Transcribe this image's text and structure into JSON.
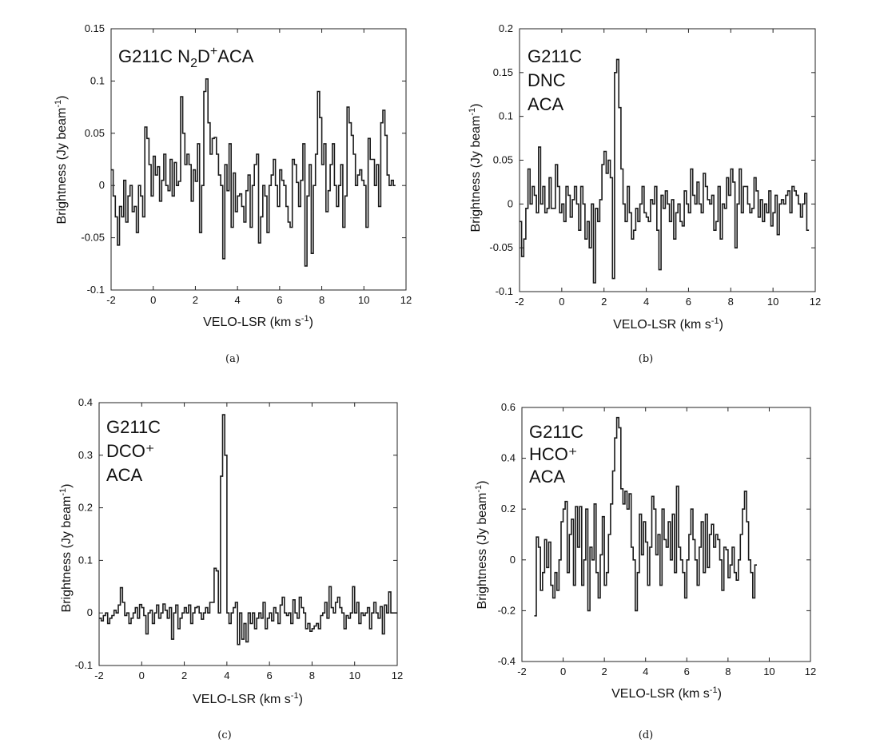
{
  "chart_data": [
    {
      "type": "line",
      "panel": "a",
      "caption": "(a)",
      "title": "G211C N₂D⁺ACA",
      "annotation_lines": [
        "G211C N₂D⁺ACA"
      ],
      "xlabel": "VELO-LSR (km s⁻¹)",
      "ylabel": "Brightness (Jy beam⁻¹)",
      "xlim": [
        -2,
        12
      ],
      "ylim": [
        -0.1,
        0.15
      ],
      "xticks": [
        -2,
        0,
        2,
        4,
        6,
        8,
        10,
        12
      ],
      "yticks": [
        -0.1,
        -0.05,
        0,
        0.05,
        0.1,
        0.15
      ],
      "xtick_labels": [
        "-2",
        "0",
        "2",
        "4",
        "6",
        "8",
        "10",
        "12"
      ],
      "ytick_labels": [
        "-0.1",
        "-0.05",
        "0",
        "0.05",
        "0.1",
        "0.15"
      ],
      "x_start": -2.0,
      "x_step": 0.1,
      "values": [
        0.015,
        -0.01,
        -0.03,
        -0.057,
        -0.02,
        -0.03,
        0.005,
        -0.035,
        -0.01,
        0.0,
        -0.025,
        -0.02,
        -0.045,
        0.0,
        -0.01,
        -0.03,
        0.056,
        0.045,
        0.02,
        -0.01,
        0.028,
        0.01,
        0.018,
        -0.015,
        0.005,
        0.03,
        0.0,
        -0.005,
        0.025,
        -0.01,
        0.022,
        0.0,
        0.004,
        0.085,
        0.05,
        0.02,
        0.03,
        0.02,
        -0.015,
        0.015,
        0.004,
        0.04,
        -0.045,
        0.0,
        0.09,
        0.102,
        0.06,
        0.03,
        0.045,
        0.046,
        0.03,
        0.01,
        0.0,
        -0.07,
        0.02,
        -0.005,
        0.04,
        -0.04,
        0.012,
        -0.025,
        -0.01,
        -0.008,
        -0.02,
        -0.035,
        -0.005,
        0.01,
        -0.04,
        0.0,
        0.02,
        0.03,
        -0.055,
        -0.03,
        0.0,
        -0.01,
        -0.045,
        0.0,
        0.01,
        0.025,
        0.0,
        -0.02,
        0.015,
        0.005,
        0.0,
        -0.02,
        -0.035,
        -0.04,
        0.025,
        0.02,
        0.003,
        -0.02,
        0.005,
        0.04,
        -0.077,
        -0.01,
        0.02,
        -0.065,
        0.0,
        0.03,
        0.09,
        0.065,
        0.02,
        0.04,
        -0.025,
        -0.005,
        0.02,
        0.04,
        0.0,
        -0.02,
        0.0,
        0.02,
        -0.04,
        -0.01,
        0.075,
        0.06,
        0.048,
        0.03,
        0.0,
        0.01,
        0.015,
        0.005,
        0.0,
        -0.04,
        0.045,
        0.025,
        0.025,
        0.0,
        0.02,
        -0.02,
        0.06,
        0.072,
        0.048,
        0.01,
        0.0,
        0.005,
        0.0
      ]
    },
    {
      "type": "line",
      "panel": "b",
      "caption": "(b)",
      "title": "G211C DNC ACA",
      "annotation_lines": [
        "G211C",
        "DNC",
        "ACA"
      ],
      "xlabel": "VELO-LSR (km s⁻¹)",
      "ylabel": "Brightness (Jy beam⁻¹)",
      "xlim": [
        -2,
        12
      ],
      "ylim": [
        -0.1,
        0.2
      ],
      "xticks": [
        -2,
        0,
        2,
        4,
        6,
        8,
        10,
        12
      ],
      "yticks": [
        -0.1,
        -0.05,
        0,
        0.05,
        0.1,
        0.15,
        0.2
      ],
      "xtick_labels": [
        "-2",
        "0",
        "2",
        "4",
        "6",
        "8",
        "10",
        "12"
      ],
      "ytick_labels": [
        "-0.1",
        "-0.05",
        "0",
        "0.05",
        "0.1",
        "0.15",
        "0.2"
      ],
      "x_start": -2.0,
      "x_step": 0.1,
      "values": [
        -0.02,
        -0.06,
        -0.04,
        -0.005,
        0.04,
        0.0,
        0.02,
        0.01,
        -0.01,
        0.065,
        0.0,
        0.02,
        -0.01,
        -0.005,
        0.03,
        -0.005,
        -0.005,
        0.045,
        0.02,
        -0.01,
        0.0,
        -0.02,
        0.02,
        0.01,
        -0.015,
        0.005,
        0.02,
        0.0,
        -0.03,
        0.02,
        0.0,
        -0.04,
        -0.02,
        -0.05,
        0.0,
        -0.09,
        -0.005,
        -0.02,
        0.005,
        0.045,
        0.06,
        0.035,
        0.05,
        0.03,
        -0.085,
        0.15,
        0.165,
        0.11,
        0.04,
        0.0,
        -0.02,
        0.02,
        -0.01,
        -0.04,
        -0.03,
        -0.005,
        -0.02,
        0.0,
        0.02,
        -0.01,
        -0.015,
        -0.02,
        0.005,
        0.0,
        0.02,
        -0.03,
        -0.075,
        0.01,
        -0.005,
        0.015,
        0.0,
        -0.02,
        0.005,
        -0.04,
        -0.01,
        0.0,
        -0.02,
        -0.025,
        0.015,
        0.0,
        -0.01,
        0.04,
        0.01,
        0.0,
        0.025,
        0.0,
        -0.01,
        0.035,
        0.02,
        0.005,
        0.0,
        0.01,
        -0.03,
        -0.02,
        0.02,
        -0.04,
        0.0,
        -0.005,
        0.03,
        0.01,
        0.04,
        0.025,
        -0.05,
        0.0,
        0.04,
        -0.01,
        0.02,
        0.02,
        0.0,
        -0.01,
        -0.005,
        0.03,
        0.015,
        -0.015,
        0.005,
        -0.02,
        0.0,
        -0.01,
        0.015,
        -0.025,
        -0.01,
        0.01,
        -0.035,
        0.0,
        0.005,
        0.0,
        0.01,
        0.015,
        -0.01,
        0.02,
        0.015,
        0.01,
        0.0,
        -0.015,
        0.0,
        0.012,
        -0.03
      ]
    },
    {
      "type": "line",
      "panel": "c",
      "caption": "(c)",
      "title": "G211C DCO⁺ ACA",
      "annotation_lines": [
        "G211C",
        "DCO⁺",
        "ACA"
      ],
      "xlabel": "VELO-LSR (km s⁻¹)",
      "ylabel": "Brightness (Jy beam⁻¹)",
      "xlim": [
        -2,
        12
      ],
      "ylim": [
        -0.1,
        0.4
      ],
      "xticks": [
        -2,
        0,
        2,
        4,
        6,
        8,
        10,
        12
      ],
      "yticks": [
        -0.1,
        0,
        0.1,
        0.2,
        0.3,
        0.4
      ],
      "xtick_labels": [
        "-2",
        "0",
        "2",
        "4",
        "6",
        "8",
        "10",
        "12"
      ],
      "ytick_labels": [
        "-0.1",
        "0",
        "0.1",
        "0.2",
        "0.3",
        "0.4"
      ],
      "x_start": -2.0,
      "x_step": 0.1,
      "values": [
        -0.01,
        -0.015,
        -0.005,
        0.0,
        -0.02,
        -0.01,
        -0.005,
        0.005,
        0.0,
        0.015,
        0.048,
        0.02,
        -0.005,
        0.0,
        -0.02,
        -0.01,
        0.0,
        0.01,
        -0.01,
        0.016,
        0.01,
        -0.005,
        -0.04,
        0.0,
        0.005,
        -0.02,
        0.0,
        0.015,
        -0.01,
        0.0,
        0.017,
        0.005,
        -0.01,
        0.01,
        -0.05,
        0.0,
        0.015,
        -0.03,
        -0.01,
        0.0,
        0.01,
        0.0,
        0.015,
        -0.02,
        0.0,
        0.01,
        0.012,
        0.0,
        -0.012,
        0.0,
        0.01,
        0.0,
        0.02,
        0.02,
        0.085,
        0.08,
        0.0,
        0.26,
        0.377,
        0.3,
        0.0,
        -0.02,
        0.0,
        0.01,
        0.02,
        -0.06,
        0.0,
        -0.05,
        -0.02,
        -0.055,
        0.0,
        -0.02,
        0.0,
        -0.03,
        -0.01,
        0.0,
        -0.01,
        0.02,
        -0.03,
        -0.01,
        0.0,
        -0.015,
        0.01,
        0.0,
        -0.02,
        0.015,
        0.03,
        0.0,
        -0.005,
        0.0,
        -0.02,
        0.025,
        0.0,
        -0.01,
        0.03,
        0.01,
        0.0,
        -0.03,
        -0.02,
        -0.035,
        -0.03,
        -0.025,
        -0.02,
        -0.03,
        -0.005,
        0.0,
        0.02,
        -0.01,
        0.05,
        0.01,
        0.0,
        0.02,
        0.03,
        0.01,
        0.0,
        -0.03,
        -0.005,
        -0.01,
        0.0,
        0.05,
        0.0,
        0.02,
        -0.02,
        0.0,
        -0.005,
        0.0,
        0.01,
        -0.03,
        0.0,
        0.02,
        0.0,
        -0.01,
        0.012,
        -0.04,
        0.015,
        0.0,
        0.04,
        0.0,
        0.0,
        0.0,
        0.0
      ]
    },
    {
      "type": "line",
      "panel": "d",
      "caption": "(d)",
      "title": "G211C HCO⁺ ACA",
      "annotation_lines": [
        "G211C",
        "HCO⁺",
        "ACA"
      ],
      "xlabel": "VELO-LSR (km s⁻¹)",
      "ylabel": "Brightness (Jy beam⁻¹)",
      "xlim": [
        -2,
        12
      ],
      "ylim": [
        -0.4,
        0.6
      ],
      "xticks": [
        -2,
        0,
        2,
        4,
        6,
        8,
        10,
        12
      ],
      "yticks": [
        -0.4,
        -0.2,
        0,
        0.2,
        0.4,
        0.6
      ],
      "xtick_labels": [
        "-2",
        "0",
        "2",
        "4",
        "6",
        "8",
        "10",
        "12"
      ],
      "ytick_labels": [
        "-0.4",
        "-0.2",
        "0",
        "0.2",
        "0.4",
        "0.6"
      ],
      "x_start": -1.4,
      "x_step": 0.1,
      "values": [
        -0.22,
        0.09,
        0.05,
        -0.12,
        -0.05,
        0.08,
        -0.03,
        0.07,
        -0.1,
        -0.15,
        -0.05,
        -0.12,
        0.0,
        0.15,
        0.2,
        0.23,
        -0.05,
        0.1,
        0.16,
        -0.1,
        0.21,
        0.05,
        0.21,
        -0.1,
        0.0,
        0.2,
        -0.2,
        0.05,
        0.0,
        0.22,
        -0.05,
        -0.15,
        0.02,
        0.17,
        -0.1,
        -0.05,
        0.1,
        0.22,
        0.35,
        0.48,
        0.56,
        0.52,
        0.28,
        0.22,
        0.27,
        0.2,
        0.26,
        0.05,
        0.0,
        -0.2,
        -0.05,
        0.18,
        0.02,
        0.15,
        0.07,
        -0.1,
        0.05,
        0.25,
        0.2,
        0.02,
        0.1,
        -0.1,
        0.2,
        0.08,
        0.05,
        0.15,
        0.0,
        0.18,
        -0.05,
        0.29,
        0.05,
        0.0,
        -0.05,
        -0.15,
        0.0,
        0.1,
        0.2,
        0.08,
        0.0,
        -0.1,
        0.05,
        0.15,
        -0.05,
        0.18,
        -0.03,
        0.1,
        0.14,
        0.05,
        0.1,
        0.08,
        0.0,
        -0.12,
        0.05,
        0.04,
        -0.07,
        -0.02,
        0.05,
        -0.05,
        -0.08,
        0.0,
        0.1,
        0.2,
        0.27,
        0.15,
        0.0,
        -0.05,
        -0.15,
        -0.02
      ]
    }
  ],
  "panels": [
    {
      "ylabel_main": "Brightness (Jy beam",
      "ylabel_sup": "-1",
      "ylabel_close": ")",
      "xlabel_main": "VELO-LSR (km s",
      "xlabel_sup": "-1",
      "xlabel_close": ")"
    },
    {
      "ylabel_main": "Brightness (Jy beam",
      "ylabel_sup": "-1",
      "ylabel_close": ")",
      "xlabel_main": "VELO-LSR (km s",
      "xlabel_sup": "-1",
      "xlabel_close": ")"
    },
    {
      "ylabel_main": "Brightness (Jy beam",
      "ylabel_sup": "-1",
      "ylabel_close": ")",
      "xlabel_main": "VELO-LSR (km s",
      "xlabel_sup": "-1",
      "xlabel_close": ")"
    },
    {
      "ylabel_main": "Brightness (Jy beam",
      "ylabel_sup": "-1",
      "ylabel_close": ")",
      "xlabel_main": "VELO-LSR (km s",
      "xlabel_sup": "-1",
      "xlabel_close": ")"
    }
  ]
}
